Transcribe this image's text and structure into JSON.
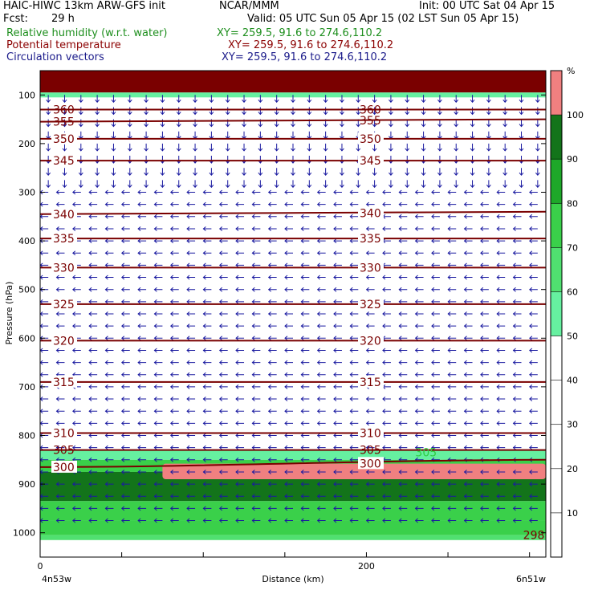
{
  "header": {
    "model": "HAIC-HIWC 13km ARW-GFS init",
    "org": "NCAR/MMM",
    "init": "Init: 00 UTC Sat 04 Apr 15",
    "fcst_label": "Fcst:",
    "fcst_value": "29 h",
    "valid": "Valid: 05 UTC Sun 05 Apr 15 (02 LST Sun 05 Apr 15)",
    "fields": [
      {
        "name": "Relative humidity (w.r.t. water)",
        "xy": "XY= 259.5, 91.6 to 274.6,110.2",
        "color": "#1e8f1e"
      },
      {
        "name": "Potential temperature",
        "xy": "XY= 259.5, 91.6 to 274.6,110.2",
        "color": "#8b0000"
      },
      {
        "name": "Circulation vectors",
        "xy": "XY= 259.5, 91.6 to 274.6,110.2",
        "color": "#1a1a8a"
      }
    ]
  },
  "colors": {
    "theta_line": "#7a0000",
    "vector": "#1a1aa0",
    "rh_label": "#2ecc40"
  },
  "chart_data": {
    "type": "heatmap",
    "ylabel": "Pressure (hPa)",
    "xlabel": "Distance (km)",
    "y_ticks": [
      100,
      200,
      300,
      400,
      500,
      600,
      700,
      800,
      900,
      1000
    ],
    "x_ticks": [
      0,
      200
    ],
    "x_range_km": [
      0,
      310
    ],
    "y_range_hPa": [
      50,
      1050
    ],
    "left_end_label": "4n53w",
    "right_end_label": "6n51w",
    "colorbar": {
      "unit": "%",
      "levels": [
        10,
        20,
        30,
        40,
        50,
        60,
        70,
        80,
        90,
        100
      ],
      "bins": [
        {
          "from": 50,
          "to": 60,
          "color": "#66f0a0"
        },
        {
          "from": 60,
          "to": 70,
          "color": "#50e070"
        },
        {
          "from": 70,
          "to": 80,
          "color": "#3ad04a"
        },
        {
          "from": 80,
          "to": 90,
          "color": "#1ea829"
        },
        {
          "from": 90,
          "to": 100,
          "color": "#13741a"
        },
        {
          "from": 100,
          "to": 110,
          "color": "#f08080"
        }
      ]
    },
    "theta_isentropes": [
      {
        "value": 360,
        "p_left": 130,
        "p_right": 130,
        "label": "360"
      },
      {
        "value": 355,
        "p_left": 155,
        "p_right": 150,
        "label": "355"
      },
      {
        "value": 350,
        "p_left": 190,
        "p_right": 190,
        "label": "350"
      },
      {
        "value": 345,
        "p_left": 235,
        "p_right": 235,
        "label": "345"
      },
      {
        "value": 340,
        "p_left": 345,
        "p_right": 340,
        "label": "340"
      },
      {
        "value": 335,
        "p_left": 395,
        "p_right": 395,
        "label": "335"
      },
      {
        "value": 330,
        "p_left": 455,
        "p_right": 455,
        "label": "330"
      },
      {
        "value": 325,
        "p_left": 530,
        "p_right": 530,
        "label": "325"
      },
      {
        "value": 320,
        "p_left": 605,
        "p_right": 605,
        "label": "320"
      },
      {
        "value": 315,
        "p_left": 690,
        "p_right": 690,
        "label": "315"
      },
      {
        "value": 310,
        "p_left": 795,
        "p_right": 795,
        "label": "310"
      },
      {
        "value": 305,
        "p_left": 830,
        "p_right": 830,
        "label": "305"
      },
      {
        "value": 300,
        "p_left": 865,
        "p_right": 850,
        "label": "300"
      }
    ],
    "surface_theta_label": "298.2",
    "rh_bands": [
      {
        "p_top": 50,
        "p_bottom": 95,
        "rh": 100
      },
      {
        "p_top": 95,
        "p_bottom": 105,
        "rh": 55
      },
      {
        "p_top": 830,
        "p_bottom": 850,
        "rh": 55
      },
      {
        "p_top": 850,
        "p_bottom": 875,
        "rh": 75
      },
      {
        "p_top": 875,
        "p_bottom": 935,
        "rh": 92
      },
      {
        "p_top": 935,
        "p_bottom": 975,
        "rh": 78
      },
      {
        "p_top": 975,
        "p_bottom": 1005,
        "rh": 72
      },
      {
        "p_top": 1005,
        "p_bottom": 1015,
        "rh": 60
      }
    ],
    "rh_supersat_region": {
      "x_from_km": 75,
      "x_to_km": 310,
      "p_top": 858,
      "p_bottom": 890,
      "rh": 100
    },
    "rh_label": "305",
    "wind_regimes": [
      {
        "p_top": 90,
        "p_bottom": 290,
        "direction": "down"
      },
      {
        "p_top": 290,
        "p_bottom": 1000,
        "direction": "left"
      }
    ]
  }
}
